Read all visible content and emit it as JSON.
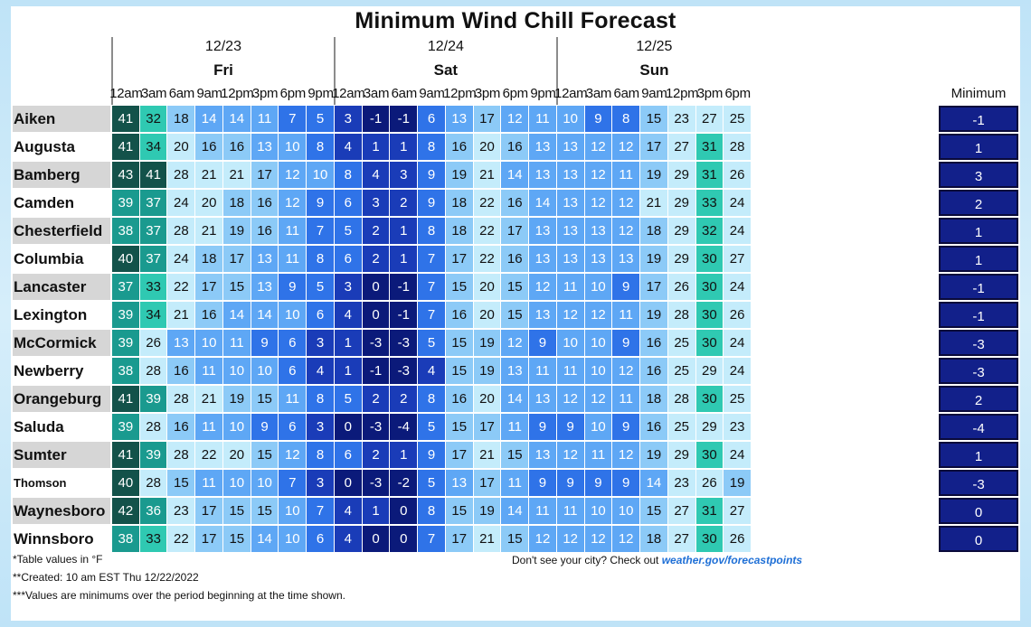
{
  "title": "Minimum Wind Chill Forecast",
  "chart_data": {
    "type": "table",
    "title": "Minimum Wind Chill Forecast",
    "days": [
      {
        "date": "12/23",
        "day": "Fri"
      },
      {
        "date": "12/24",
        "day": "Sat"
      },
      {
        "date": "12/25",
        "day": "Sun"
      }
    ],
    "times": [
      "12am",
      "3am",
      "6am",
      "9am",
      "12pm",
      "3pm",
      "6pm",
      "9pm",
      "12am",
      "3am",
      "6am",
      "9am",
      "12pm",
      "3pm",
      "6pm",
      "9pm",
      "12am",
      "3am",
      "6am",
      "9am",
      "12pm",
      "3pm",
      "6pm"
    ],
    "minimum_header": "Minimum",
    "rows": [
      {
        "city": "Aiken",
        "values": [
          41,
          32,
          18,
          14,
          14,
          11,
          7,
          5,
          3,
          -1,
          -1,
          6,
          13,
          17,
          12,
          11,
          10,
          9,
          8,
          15,
          23,
          27,
          25
        ],
        "minimum": -1
      },
      {
        "city": "Augusta",
        "values": [
          41,
          34,
          20,
          16,
          16,
          13,
          10,
          8,
          4,
          1,
          1,
          8,
          16,
          20,
          16,
          13,
          13,
          12,
          12,
          17,
          27,
          31,
          28
        ],
        "minimum": 1
      },
      {
        "city": "Bamberg",
        "values": [
          43,
          41,
          28,
          21,
          21,
          17,
          12,
          10,
          8,
          4,
          3,
          9,
          19,
          21,
          14,
          13,
          13,
          12,
          11,
          19,
          29,
          31,
          26
        ],
        "minimum": 3
      },
      {
        "city": "Camden",
        "values": [
          39,
          37,
          24,
          20,
          18,
          16,
          12,
          9,
          6,
          3,
          2,
          9,
          18,
          22,
          16,
          14,
          13,
          12,
          12,
          21,
          29,
          33,
          24
        ],
        "minimum": 2
      },
      {
        "city": "Chesterfield",
        "values": [
          38,
          37,
          28,
          21,
          19,
          16,
          11,
          7,
          5,
          2,
          1,
          8,
          18,
          22,
          17,
          13,
          13,
          13,
          12,
          18,
          29,
          32,
          24
        ],
        "minimum": 1
      },
      {
        "city": "Columbia",
        "values": [
          40,
          37,
          24,
          18,
          17,
          13,
          11,
          8,
          6,
          2,
          1,
          7,
          17,
          22,
          16,
          13,
          13,
          13,
          13,
          19,
          29,
          30,
          27
        ],
        "minimum": 1
      },
      {
        "city": "Lancaster",
        "values": [
          37,
          33,
          22,
          17,
          15,
          13,
          9,
          5,
          3,
          0,
          -1,
          7,
          15,
          20,
          15,
          12,
          11,
          10,
          9,
          17,
          26,
          30,
          24
        ],
        "minimum": -1
      },
      {
        "city": "Lexington",
        "values": [
          39,
          34,
          21,
          16,
          14,
          14,
          10,
          6,
          4,
          0,
          -1,
          7,
          16,
          20,
          15,
          13,
          12,
          12,
          11,
          19,
          28,
          30,
          26
        ],
        "minimum": -1
      },
      {
        "city": "McCormick",
        "values": [
          39,
          26,
          13,
          10,
          11,
          9,
          6,
          3,
          1,
          -3,
          -3,
          5,
          15,
          19,
          12,
          9,
          10,
          10,
          9,
          16,
          25,
          30,
          24
        ],
        "minimum": -3
      },
      {
        "city": "Newberry",
        "values": [
          38,
          28,
          16,
          11,
          10,
          10,
          6,
          4,
          1,
          -1,
          -3,
          4,
          15,
          19,
          13,
          11,
          11,
          10,
          12,
          16,
          25,
          29,
          24
        ],
        "minimum": -3
      },
      {
        "city": "Orangeburg",
        "values": [
          41,
          39,
          28,
          21,
          19,
          15,
          11,
          8,
          5,
          2,
          2,
          8,
          16,
          20,
          14,
          13,
          12,
          12,
          11,
          18,
          28,
          30,
          25
        ],
        "minimum": 2
      },
      {
        "city": "Saluda",
        "values": [
          39,
          28,
          16,
          11,
          10,
          9,
          6,
          3,
          0,
          -3,
          -4,
          5,
          15,
          17,
          11,
          9,
          9,
          10,
          9,
          16,
          25,
          29,
          23
        ],
        "minimum": -4
      },
      {
        "city": "Sumter",
        "values": [
          41,
          39,
          28,
          22,
          20,
          15,
          12,
          8,
          6,
          2,
          1,
          9,
          17,
          21,
          15,
          13,
          12,
          11,
          12,
          19,
          29,
          30,
          24
        ],
        "minimum": 1
      },
      {
        "city": "Thomson",
        "values": [
          40,
          28,
          15,
          11,
          10,
          10,
          7,
          3,
          0,
          -3,
          -2,
          5,
          13,
          17,
          11,
          9,
          9,
          9,
          9,
          14,
          23,
          26,
          19
        ],
        "minimum": -3
      },
      {
        "city": "Waynesboro",
        "values": [
          42,
          36,
          23,
          17,
          15,
          15,
          10,
          7,
          4,
          1,
          0,
          8,
          15,
          19,
          14,
          11,
          11,
          10,
          10,
          15,
          27,
          31,
          27
        ],
        "minimum": 0
      },
      {
        "city": "Winnsboro",
        "values": [
          38,
          33,
          22,
          17,
          15,
          14,
          10,
          6,
          4,
          0,
          0,
          7,
          17,
          21,
          15,
          12,
          12,
          12,
          12,
          18,
          27,
          30,
          26
        ],
        "minimum": 0
      }
    ]
  },
  "footnotes": [
    "*Table values in °F",
    "**Created: 10 am EST Thu 12/22/2022",
    "***Values are minimums over the period beginning at the time shown."
  ],
  "checkout": {
    "text": "Don't see your city? Check out ",
    "link": "weather.gov/forecastpoints"
  },
  "colors": {
    "band_dark": "#0b1a7a",
    "band_cold": "#1a3cb8",
    "band_cool": "#2f73e8",
    "band_mild": "#5ea7f5",
    "band_light": "#8ccaf7",
    "band_pale": "#c4ecfb",
    "band_aqua": "#2fc9b2",
    "band_teal": "#1a9a8f",
    "band_deep_teal": "#13524a",
    "minimum_box": "#12208a"
  }
}
